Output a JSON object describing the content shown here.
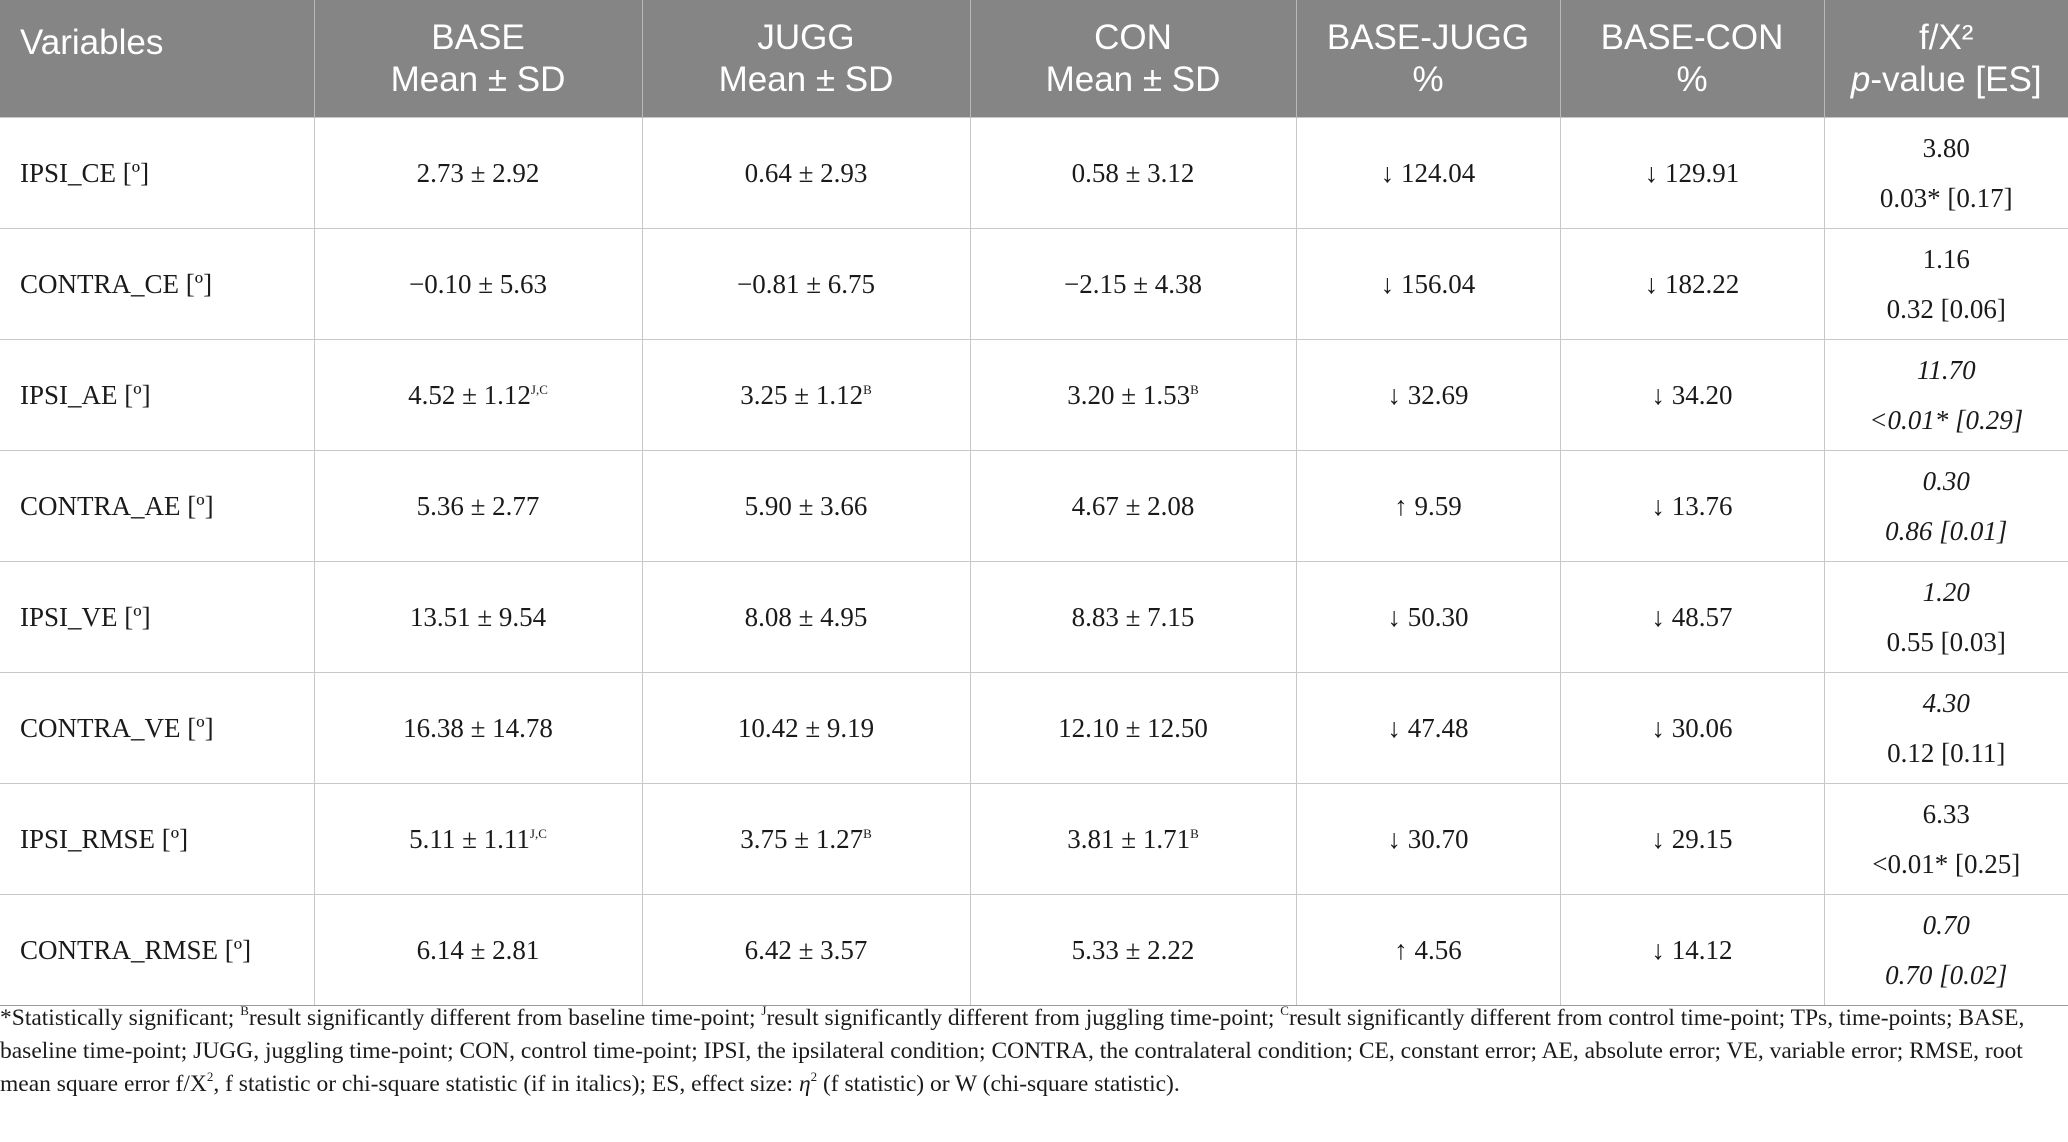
{
  "header": {
    "variables": "Variables",
    "base_1": "BASE",
    "base_2": "Mean ± SD",
    "jugg_1": "JUGG",
    "jugg_2": "Mean ± SD",
    "con_1": "CON",
    "con_2": "Mean ± SD",
    "base_jugg_1": "BASE-JUGG",
    "base_jugg_2": "%",
    "base_con_1": "BASE-CON",
    "base_con_2": "%",
    "stat_1": "f/X²",
    "stat_2_italic": "p",
    "stat_2_rest": "-value [ES]"
  },
  "rows": [
    {
      "variable": "IPSI_CE [º]",
      "base": "2.73 ± 2.92",
      "base_sup": "",
      "jugg": "0.64 ± 2.93",
      "jugg_sup": "",
      "con": "0.58 ± 3.12",
      "con_sup": "",
      "base_jugg": "↓ 124.04",
      "base_con": "↓ 129.91",
      "stat": "3.80",
      "p": "0.03* [0.17]"
    },
    {
      "variable": "CONTRA_CE [º]",
      "base": "−0.10 ± 5.63",
      "base_sup": "",
      "jugg": "−0.81 ± 6.75",
      "jugg_sup": "",
      "con": "−2.15 ± 4.38",
      "con_sup": "",
      "base_jugg": "↓ 156.04",
      "base_con": "↓ 182.22",
      "stat": "1.16",
      "p": "0.32 [0.06]"
    },
    {
      "variable": "IPSI_AE [º]",
      "base": "4.52 ± 1.12",
      "base_sup": "J,C",
      "jugg": "3.25 ± 1.12",
      "jugg_sup": "B",
      "con": "3.20 ± 1.53",
      "con_sup": "B",
      "base_jugg": "↓ 32.69",
      "base_con": "↓ 34.20",
      "stat": "11.70",
      "p": "<0.01* [0.29]"
    },
    {
      "variable": "CONTRA_AE [º]",
      "base": "5.36 ± 2.77",
      "base_sup": "",
      "jugg": "5.90 ± 3.66",
      "jugg_sup": "",
      "con": "4.67 ± 2.08",
      "con_sup": "",
      "base_jugg": "↑ 9.59",
      "base_con": "↓ 13.76",
      "stat": "0.30",
      "p": "0.86 [0.01]"
    },
    {
      "variable": "IPSI_VE [º]",
      "base": "13.51 ± 9.54",
      "base_sup": "",
      "jugg": "8.08 ± 4.95",
      "jugg_sup": "",
      "con": "8.83 ± 7.15",
      "con_sup": "",
      "base_jugg": "↓ 50.30",
      "base_con": "↓ 48.57",
      "stat": "1.20",
      "p": "0.55 [0.03]"
    },
    {
      "variable": "CONTRA_VE [º]",
      "base": "16.38 ± 14.78",
      "base_sup": "",
      "jugg": "10.42 ± 9.19",
      "jugg_sup": "",
      "con": "12.10 ± 12.50",
      "con_sup": "",
      "base_jugg": "↓ 47.48",
      "base_con": "↓ 30.06",
      "stat": "4.30",
      "p": "0.12 [0.11]"
    },
    {
      "variable": "IPSI_RMSE [º]",
      "base": "5.11 ± 1.11",
      "base_sup": "J,C",
      "jugg": "3.75 ± 1.27",
      "jugg_sup": "B",
      "con": "3.81 ± 1.71",
      "con_sup": "B",
      "base_jugg": "↓ 30.70",
      "base_con": "↓ 29.15",
      "stat": "6.33",
      "p": "<0.01* [0.25]"
    },
    {
      "variable": "CONTRA_RMSE [º]",
      "base": "6.14 ± 2.81",
      "base_sup": "",
      "jugg": "6.42 ± 3.57",
      "jugg_sup": "",
      "con": "5.33 ± 2.22",
      "con_sup": "",
      "base_jugg": "↑ 4.56",
      "base_con": "↓ 14.12",
      "stat": "0.70",
      "p": "0.70 [0.02]"
    }
  ],
  "footnote": {
    "p1": "*Statistically significant; ",
    "s1": "B",
    "p2": "result significantly different from baseline time-point; ",
    "s2": "J",
    "p3": "result significantly different from juggling time-point; ",
    "s3": "C",
    "p4": "result significantly different from control time-point; TPs, time-points; BASE, baseline time-point; JUGG, juggling time-point; CON, control time-point; IPSI, the ipsilateral condition; CONTRA, the contralateral condition; CE, constant error; AE, absolute error; VE, variable error; RMSE, root mean square error f/X",
    "s4": "2",
    "p5": ", f statistic or chi-square statistic (if in italics); ES, effect size: ",
    "eta": "η",
    "s5": "2",
    "p6": " (f statistic) or W (chi-square statistic)."
  }
}
